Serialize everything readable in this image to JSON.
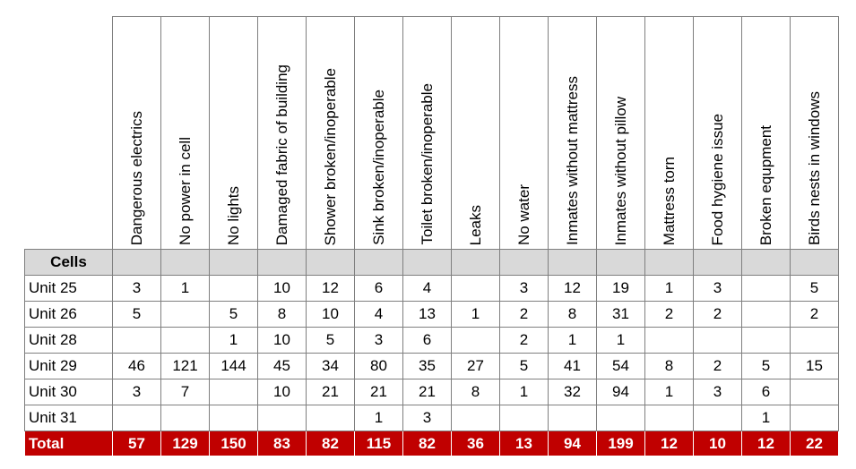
{
  "table": {
    "corner_label": "",
    "cells_label": "Cells",
    "columns": [
      "Dangerous electrics",
      "No power in cell",
      "No lights",
      "Damaged fabric of building",
      "Shower broken/inoperable",
      "Sink broken/inoperable",
      "Toilet broken/inoperable",
      "Leaks",
      "No water",
      "Inmates without mattress",
      "Inmates without pillow",
      "Mattress torn",
      "Food hygiene issue",
      "Broken equpment",
      "Birds nests in windows"
    ],
    "rows": [
      {
        "label": "Unit 25",
        "values": [
          "3",
          "1",
          "",
          "10",
          "12",
          "6",
          "4",
          "",
          "3",
          "12",
          "19",
          "1",
          "3",
          "",
          "5"
        ]
      },
      {
        "label": "Unit 26",
        "values": [
          "5",
          "",
          "5",
          "8",
          "10",
          "4",
          "13",
          "1",
          "2",
          "8",
          "31",
          "2",
          "2",
          "",
          "2"
        ]
      },
      {
        "label": "Unit 28",
        "values": [
          "",
          "",
          "1",
          "10",
          "5",
          "3",
          "6",
          "",
          "2",
          "1",
          "1",
          "",
          "",
          "",
          ""
        ]
      },
      {
        "label": "Unit 29",
        "values": [
          "46",
          "121",
          "144",
          "45",
          "34",
          "80",
          "35",
          "27",
          "5",
          "41",
          "54",
          "8",
          "2",
          "5",
          "15"
        ]
      },
      {
        "label": "Unit 30",
        "values": [
          "3",
          "7",
          "",
          "10",
          "21",
          "21",
          "21",
          "8",
          "1",
          "32",
          "94",
          "1",
          "3",
          "6",
          ""
        ]
      },
      {
        "label": "Unit 31",
        "values": [
          "",
          "",
          "",
          "",
          "",
          "1",
          "3",
          "",
          "",
          "",
          "",
          "",
          "",
          "1",
          ""
        ]
      }
    ],
    "total": {
      "label": "Total",
      "values": [
        "57",
        "129",
        "150",
        "83",
        "82",
        "115",
        "82",
        "36",
        "13",
        "94",
        "199",
        "12",
        "10",
        "12",
        "22"
      ]
    }
  }
}
